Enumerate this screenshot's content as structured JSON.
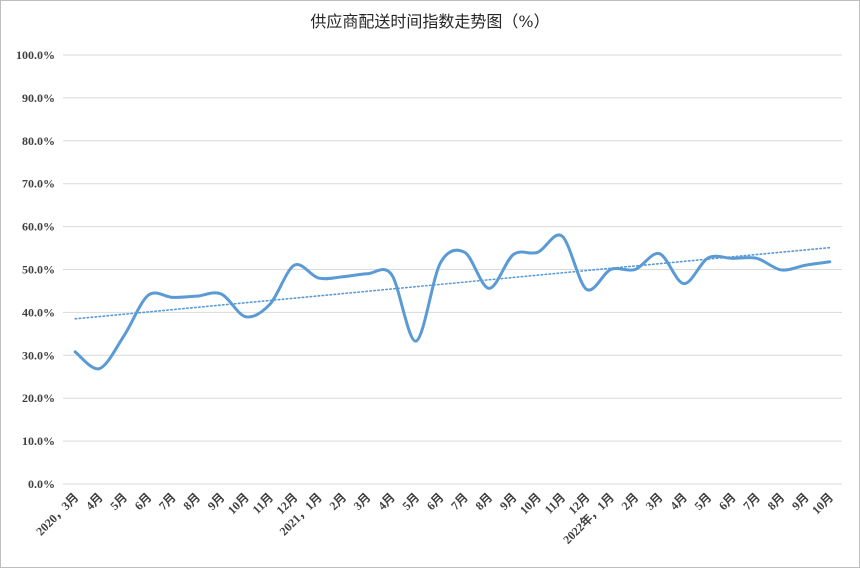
{
  "chart_data": {
    "type": "line",
    "title": "供应商配送时间指数走势图（%）",
    "xlabel": "",
    "ylabel": "",
    "categories": [
      "2020，3月",
      "4月",
      "5月",
      "6月",
      "7月",
      "8月",
      "9月",
      "10月",
      "11月",
      "12月",
      "2021，1月",
      "2月",
      "3月",
      "4月",
      "5月",
      "6月",
      "7月",
      "8月",
      "9月",
      "10月",
      "11月",
      "12月",
      "2022年，1月",
      "2月",
      "3月",
      "4月",
      "5月",
      "6月",
      "7月",
      "8月",
      "9月",
      "10月"
    ],
    "series": [
      {
        "values": [
          30.8,
          26.9,
          34.5,
          44.0,
          43.5,
          43.8,
          44.3,
          39.0,
          41.9,
          51.0,
          48.0,
          48.3,
          49.0,
          48.8,
          33.3,
          51.5,
          54.0,
          45.6,
          53.5,
          54.0,
          57.8,
          45.4,
          50.0,
          50.0,
          53.7,
          46.7,
          52.7,
          52.6,
          52.6,
          49.9,
          51.0,
          51.8
        ],
        "color": "#5b9bd5",
        "smooth": true
      },
      {
        "trendline": "linear",
        "values_start_end": [
          38.5,
          55.1
        ],
        "color": "#5b9bd5",
        "style": "dotted"
      }
    ],
    "ylim": [
      0,
      100
    ],
    "yticks": [
      "0.0%",
      "10.0%",
      "20.0%",
      "30.0%",
      "40.0%",
      "50.0%",
      "60.0%",
      "70.0%",
      "80.0%",
      "90.0%",
      "100.0%"
    ],
    "grid": true,
    "legend": "none"
  }
}
